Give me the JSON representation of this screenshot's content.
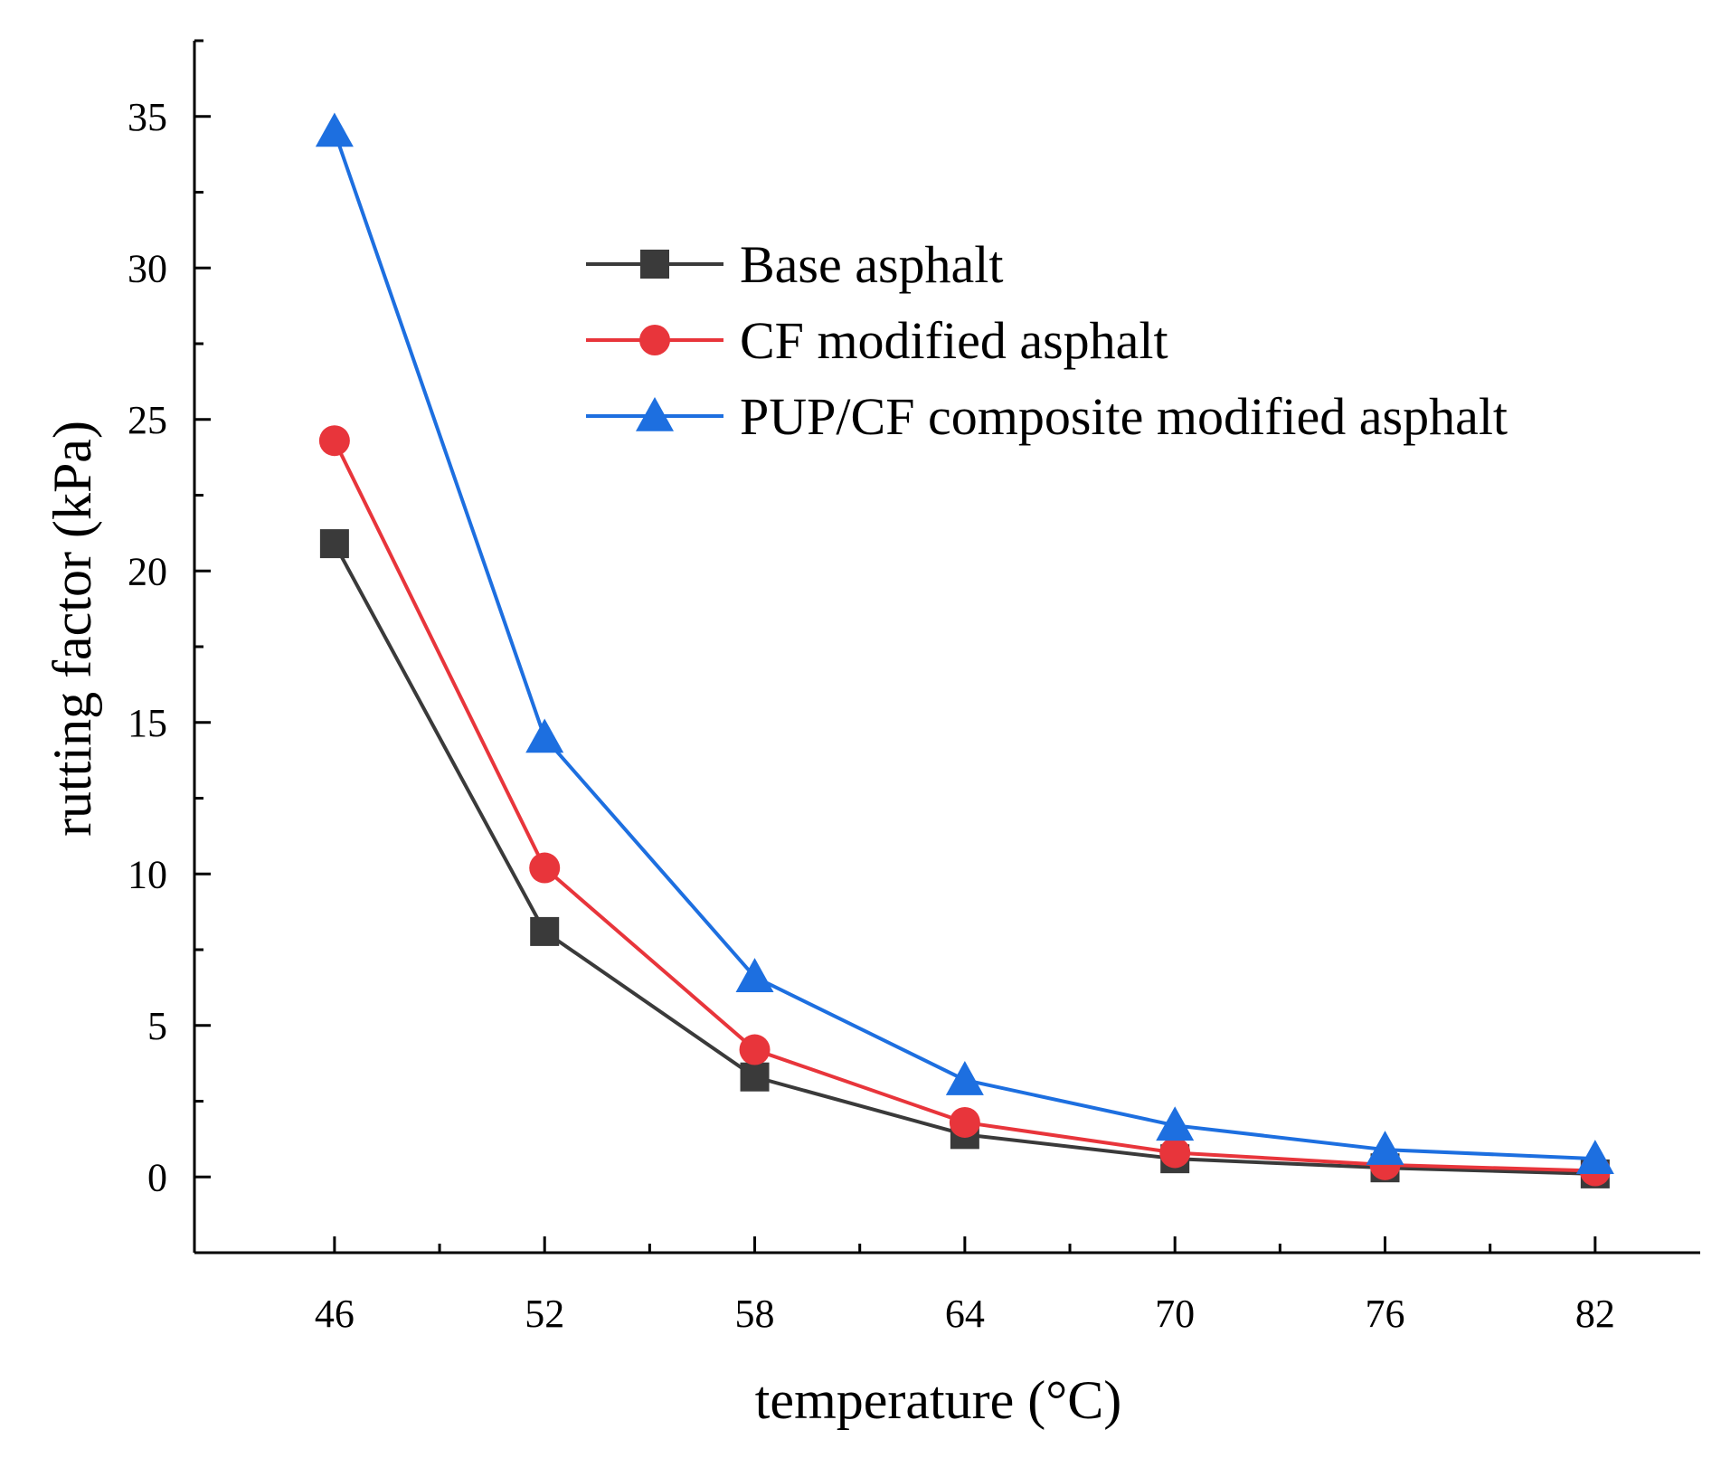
{
  "chart_data": {
    "type": "line",
    "title": "",
    "xlabel": "temperature (°C)",
    "ylabel": "rutting factor (kPa)",
    "x": [
      46,
      52,
      58,
      64,
      70,
      76,
      82
    ],
    "x_tick_labels": [
      "46",
      "52",
      "58",
      "64",
      "70",
      "76",
      "82"
    ],
    "xlim": [
      42,
      85
    ],
    "ylim": [
      -2.5,
      37.5
    ],
    "y_ticks": [
      0,
      5,
      10,
      15,
      20,
      25,
      30,
      35
    ],
    "y_tick_labels": [
      "0",
      "5",
      "10",
      "15",
      "20",
      "25",
      "30",
      "35"
    ],
    "grid": false,
    "legend_position": "top-right",
    "series": [
      {
        "name": "Base asphalt",
        "color": "#3a3a3a",
        "marker": "square",
        "values": [
          20.9,
          8.1,
          3.3,
          1.4,
          0.6,
          0.3,
          0.1
        ]
      },
      {
        "name": "CF modified asphalt",
        "color": "#e8353b",
        "marker": "circle",
        "values": [
          24.3,
          10.2,
          4.2,
          1.8,
          0.8,
          0.4,
          0.2
        ]
      },
      {
        "name": "PUP/CF composite modified asphalt",
        "color": "#1d6fe0",
        "marker": "triangle",
        "values": [
          34.5,
          14.5,
          6.6,
          3.2,
          1.7,
          0.9,
          0.6
        ]
      }
    ]
  }
}
